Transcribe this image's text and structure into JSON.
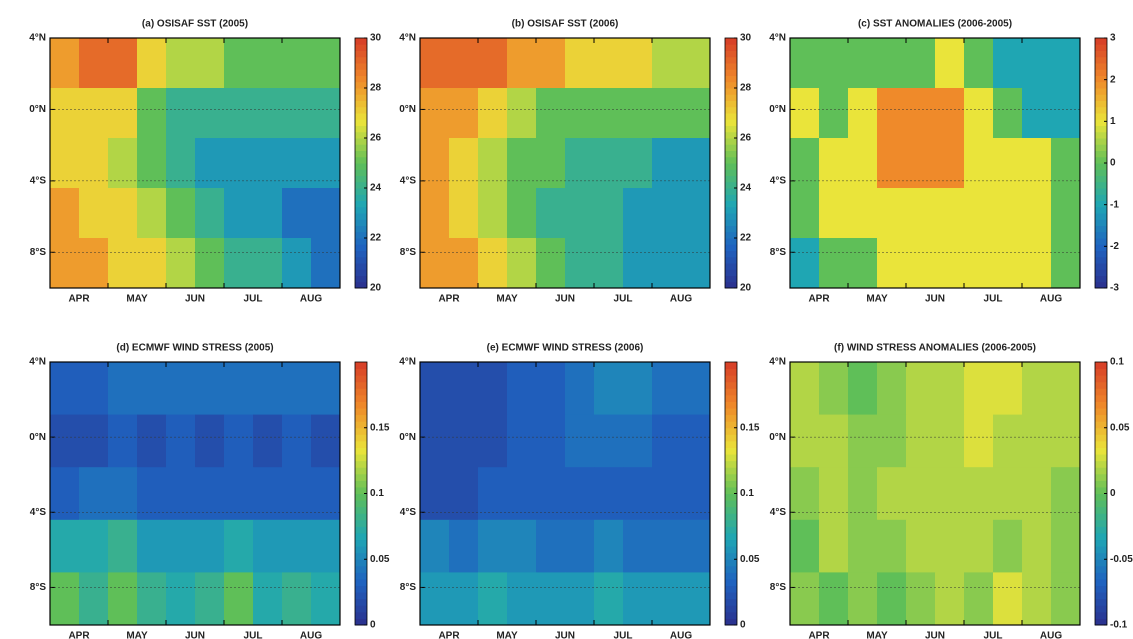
{
  "chart_data": [
    {
      "type": "heatmap",
      "title": "(a) OSISAF SST (2005)",
      "categories": [
        "APR",
        "MAY",
        "JUN",
        "JUL",
        "AUG"
      ],
      "ylim": [
        -10,
        4
      ],
      "yticks": [
        {
          "value": 4,
          "label": "4°N"
        },
        {
          "value": 0,
          "label": "0°N"
        },
        {
          "value": -4,
          "label": "4°S"
        },
        {
          "value": -8,
          "label": "8°S"
        }
      ],
      "zlim": [
        20,
        30
      ],
      "zticks": [
        20,
        22,
        24,
        26,
        28,
        30
      ],
      "grid": true,
      "colors": [
        "#2b2f8c",
        "#1f63c0",
        "#1fa6b3",
        "#5fbf58",
        "#eae43a",
        "#ef8a2a",
        "#d63c28"
      ],
      "z": [
        [
          28,
          29,
          29,
          27,
          26,
          26,
          25,
          25,
          25,
          25
        ],
        [
          27,
          27,
          27,
          25,
          24,
          24,
          24,
          24,
          24,
          24
        ],
        [
          27,
          27,
          26,
          25,
          24,
          23,
          23,
          23,
          23,
          23
        ],
        [
          28,
          27,
          27,
          26,
          25,
          24,
          23,
          23,
          22,
          22
        ],
        [
          28,
          28,
          27,
          27,
          26,
          25,
          24,
          24,
          23,
          22
        ]
      ]
    },
    {
      "type": "heatmap",
      "title": "(b) OSISAF SST (2006)",
      "categories": [
        "APR",
        "MAY",
        "JUN",
        "JUL",
        "AUG"
      ],
      "ylim": [
        -10,
        4
      ],
      "yticks": [
        {
          "value": 4,
          "label": "4°N"
        },
        {
          "value": 0,
          "label": "0°N"
        },
        {
          "value": -4,
          "label": "4°S"
        },
        {
          "value": -8,
          "label": "8°S"
        }
      ],
      "zlim": [
        20,
        30
      ],
      "zticks": [
        20,
        22,
        24,
        26,
        28,
        30
      ],
      "grid": true,
      "colors": [
        "#2b2f8c",
        "#1f63c0",
        "#1fa6b3",
        "#5fbf58",
        "#eae43a",
        "#ef8a2a",
        "#d63c28"
      ],
      "z": [
        [
          29,
          29,
          29,
          28,
          28,
          27,
          27,
          27,
          26,
          26
        ],
        [
          28,
          28,
          27,
          26,
          25,
          25,
          25,
          25,
          25,
          25
        ],
        [
          28,
          27,
          26,
          25,
          25,
          24,
          24,
          24,
          23,
          23
        ],
        [
          28,
          27,
          26,
          25,
          24,
          24,
          24,
          23,
          23,
          23
        ],
        [
          28,
          28,
          27,
          26,
          25,
          24,
          24,
          23,
          23,
          23
        ]
      ]
    },
    {
      "type": "heatmap",
      "title": "(c) SST ANOMALIES (2006-2005)",
      "categories": [
        "APR",
        "MAY",
        "JUN",
        "JUL",
        "AUG"
      ],
      "ylim": [
        -10,
        4
      ],
      "yticks": [
        {
          "value": 4,
          "label": "4°N"
        },
        {
          "value": 0,
          "label": "0°N"
        },
        {
          "value": -4,
          "label": "4°S"
        },
        {
          "value": -8,
          "label": "8°S"
        }
      ],
      "zlim": [
        -3,
        3
      ],
      "zticks": [
        -3,
        -2,
        -1,
        0,
        1,
        2,
        3
      ],
      "grid": true,
      "colors": [
        "#2b2f8c",
        "#1f63c0",
        "#1fa6b3",
        "#5fbf58",
        "#eae43a",
        "#ef8a2a",
        "#d63c28"
      ],
      "z": [
        [
          0,
          0,
          0,
          0,
          0,
          1,
          0,
          -1,
          -1,
          -1
        ],
        [
          1,
          0,
          1,
          2,
          2,
          2,
          1,
          0,
          -1,
          -1
        ],
        [
          0,
          1,
          1,
          2,
          2,
          2,
          1,
          1,
          1,
          0
        ],
        [
          0,
          1,
          1,
          1,
          1,
          1,
          1,
          1,
          1,
          0
        ],
        [
          -1,
          0,
          0,
          1,
          1,
          1,
          1,
          1,
          1,
          0
        ]
      ]
    },
    {
      "type": "heatmap",
      "title": "(d) ECMWF WIND STRESS (2005)",
      "categories": [
        "APR",
        "MAY",
        "JUN",
        "JUL",
        "AUG"
      ],
      "ylim": [
        -10,
        4
      ],
      "yticks": [
        {
          "value": 4,
          "label": "4°N"
        },
        {
          "value": 0,
          "label": "0°N"
        },
        {
          "value": -4,
          "label": "4°S"
        },
        {
          "value": -8,
          "label": "8°S"
        }
      ],
      "zlim": [
        0,
        0.2
      ],
      "zticks": [
        0,
        0.05,
        0.1,
        0.15
      ],
      "grid": true,
      "colors": [
        "#2b2f8c",
        "#1f63c0",
        "#1fa6b3",
        "#5fbf58",
        "#eae43a",
        "#ef8a2a",
        "#d63c28"
      ],
      "z": [
        [
          0.03,
          0.03,
          0.04,
          0.04,
          0.04,
          0.04,
          0.04,
          0.04,
          0.04,
          0.04
        ],
        [
          0.02,
          0.02,
          0.03,
          0.02,
          0.03,
          0.02,
          0.03,
          0.02,
          0.03,
          0.02
        ],
        [
          0.03,
          0.04,
          0.04,
          0.03,
          0.03,
          0.03,
          0.03,
          0.03,
          0.03,
          0.03
        ],
        [
          0.07,
          0.07,
          0.08,
          0.06,
          0.06,
          0.06,
          0.07,
          0.06,
          0.06,
          0.06
        ],
        [
          0.1,
          0.08,
          0.1,
          0.08,
          0.07,
          0.08,
          0.1,
          0.07,
          0.08,
          0.07
        ]
      ]
    },
    {
      "type": "heatmap",
      "title": "(e) ECMWF WIND STRESS (2006)",
      "categories": [
        "APR",
        "MAY",
        "JUN",
        "JUL",
        "AUG"
      ],
      "ylim": [
        -10,
        4
      ],
      "yticks": [
        {
          "value": 4,
          "label": "4°N"
        },
        {
          "value": 0,
          "label": "0°N"
        },
        {
          "value": -4,
          "label": "4°S"
        },
        {
          "value": -8,
          "label": "8°S"
        }
      ],
      "zlim": [
        0,
        0.2
      ],
      "zticks": [
        0,
        0.05,
        0.1,
        0.15
      ],
      "grid": true,
      "colors": [
        "#2b2f8c",
        "#1f63c0",
        "#1fa6b3",
        "#5fbf58",
        "#eae43a",
        "#ef8a2a",
        "#d63c28"
      ],
      "z": [
        [
          0.02,
          0.02,
          0.02,
          0.03,
          0.03,
          0.04,
          0.05,
          0.05,
          0.04,
          0.04
        ],
        [
          0.02,
          0.02,
          0.02,
          0.03,
          0.03,
          0.04,
          0.04,
          0.04,
          0.03,
          0.03
        ],
        [
          0.02,
          0.02,
          0.03,
          0.03,
          0.03,
          0.03,
          0.03,
          0.03,
          0.03,
          0.03
        ],
        [
          0.05,
          0.04,
          0.05,
          0.05,
          0.04,
          0.04,
          0.05,
          0.04,
          0.04,
          0.04
        ],
        [
          0.06,
          0.06,
          0.07,
          0.06,
          0.06,
          0.06,
          0.07,
          0.06,
          0.06,
          0.06
        ]
      ]
    },
    {
      "type": "heatmap",
      "title": "(f) WIND STRESS ANOMALIES (2006-2005)",
      "categories": [
        "APR",
        "MAY",
        "JUN",
        "JUL",
        "AUG"
      ],
      "ylim": [
        -10,
        4
      ],
      "yticks": [
        {
          "value": 4,
          "label": "4°N"
        },
        {
          "value": 0,
          "label": "0°N"
        },
        {
          "value": -4,
          "label": "4°S"
        },
        {
          "value": -8,
          "label": "8°S"
        }
      ],
      "zlim": [
        -0.1,
        0.1
      ],
      "zticks": [
        -0.1,
        -0.05,
        0,
        0.05,
        0.1
      ],
      "grid": true,
      "colors": [
        "#2b2f8c",
        "#1f63c0",
        "#1fa6b3",
        "#5fbf58",
        "#eae43a",
        "#ef8a2a",
        "#d63c28"
      ],
      "z": [
        [
          0.02,
          0.01,
          0,
          0.01,
          0.02,
          0.02,
          0.03,
          0.03,
          0.02,
          0.02
        ],
        [
          0.02,
          0.02,
          0.01,
          0.01,
          0.02,
          0.02,
          0.03,
          0.02,
          0.02,
          0.02
        ],
        [
          0.01,
          0.02,
          0.01,
          0.02,
          0.02,
          0.02,
          0.02,
          0.02,
          0.02,
          0.01
        ],
        [
          0,
          0.02,
          0.01,
          0.01,
          0.02,
          0.02,
          0.02,
          0.01,
          0.02,
          0.01
        ],
        [
          0.01,
          0,
          0.01,
          0,
          0.01,
          0.02,
          0.01,
          0.03,
          0.02,
          0.01
        ]
      ]
    }
  ]
}
